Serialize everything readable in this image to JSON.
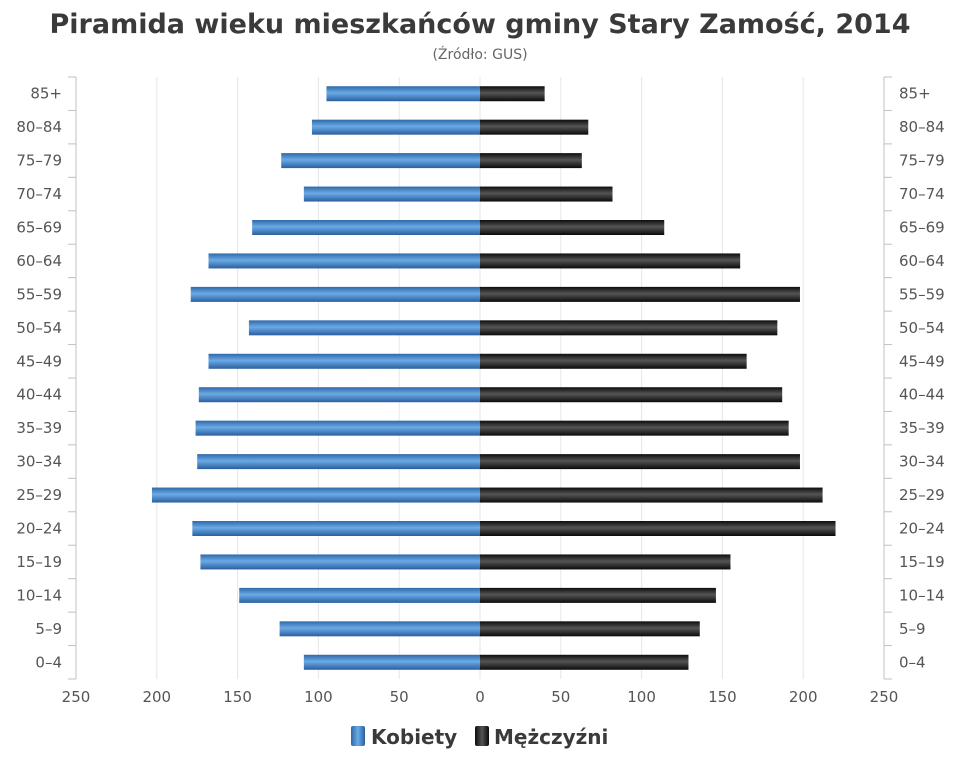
{
  "chart_data": {
    "type": "bar",
    "orientation": "horizontal-pyramid",
    "title": "Piramida wieku mieszkańców gminy Stary Zamość, 2014",
    "subtitle": "(Źródło: GUS)",
    "categories": [
      "85+",
      "80–84",
      "75–79",
      "70–74",
      "65–69",
      "60–64",
      "55–59",
      "50–54",
      "45–49",
      "40–44",
      "35–39",
      "30–34",
      "25–29",
      "20–24",
      "15–19",
      "10–14",
      "5–9",
      "0–4"
    ],
    "series": [
      {
        "name": "Kobiety",
        "color": "#3a79c0",
        "values": [
          95,
          104,
          123,
          109,
          141,
          168,
          179,
          143,
          168,
          174,
          176,
          175,
          203,
          178,
          173,
          149,
          124,
          109
        ]
      },
      {
        "name": "Mężczyźni",
        "color": "#1a1a1a",
        "values": [
          40,
          67,
          63,
          82,
          114,
          161,
          198,
          184,
          165,
          187,
          191,
          198,
          212,
          220,
          155,
          146,
          136,
          129
        ]
      }
    ],
    "xlim": [
      -250,
      250
    ],
    "x_tick_labels": [
      "250",
      "200",
      "150",
      "100",
      "50",
      "0",
      "50",
      "100",
      "150",
      "200",
      "250"
    ],
    "grid": true,
    "legend_position": "bottom"
  }
}
